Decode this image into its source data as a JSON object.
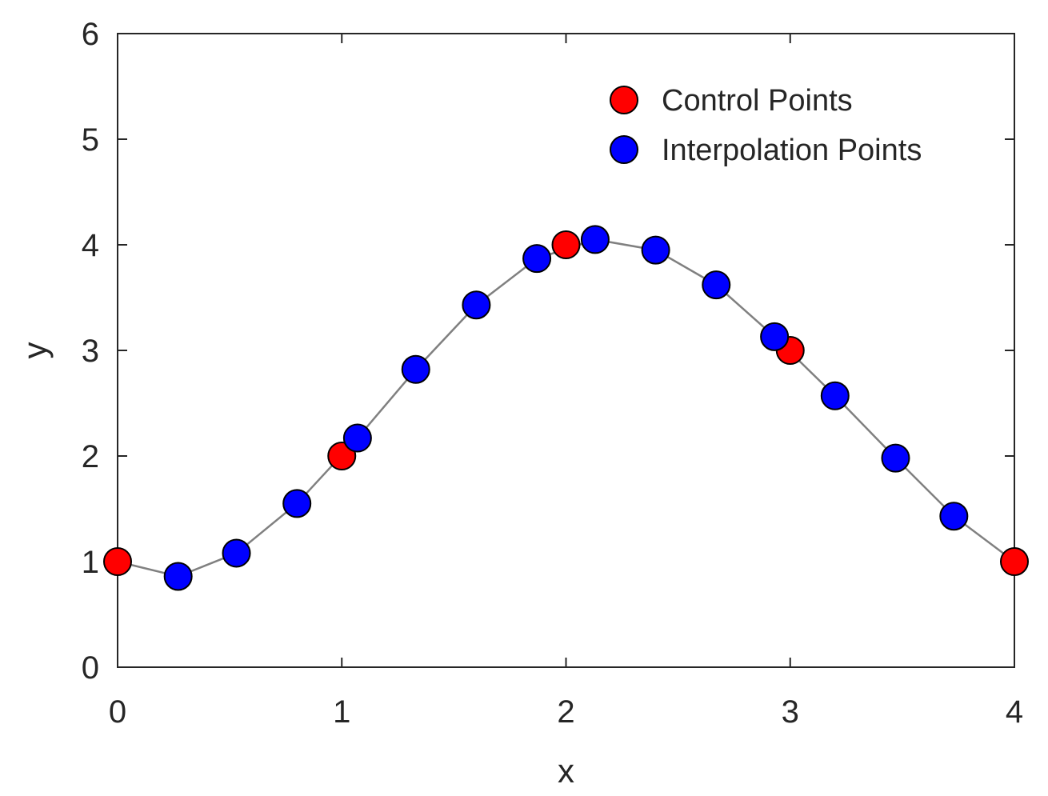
{
  "chart_data": {
    "type": "scatter",
    "xlabel": "x",
    "ylabel": "y",
    "xlim": [
      0,
      4
    ],
    "ylim": [
      0,
      6
    ],
    "xticks": [
      "0",
      "1",
      "2",
      "3",
      "4"
    ],
    "yticks": [
      "0",
      "1",
      "2",
      "3",
      "4",
      "5",
      "6"
    ],
    "grid": false,
    "legend_position": "top-right",
    "series": [
      {
        "name": "Control Points",
        "color": "#ff0000",
        "x": [
          0,
          1,
          2,
          3,
          4
        ],
        "y": [
          1,
          2,
          4,
          3,
          1
        ]
      },
      {
        "name": "Interpolation Points",
        "color": "#0000ff",
        "line_color": "#808080",
        "x": [
          0.27,
          0.53,
          0.8,
          1.07,
          1.33,
          1.6,
          1.87,
          2.13,
          2.4,
          2.67,
          2.93,
          3.2,
          3.47,
          3.73
        ],
        "y": [
          0.86,
          1.08,
          1.55,
          2.17,
          2.82,
          3.43,
          3.87,
          4.05,
          3.95,
          3.62,
          3.13,
          2.57,
          1.98,
          1.43
        ]
      }
    ],
    "curve": {
      "x": [
        0,
        0.27,
        0.53,
        0.8,
        1.07,
        1.33,
        1.6,
        1.87,
        2.13,
        2.4,
        2.67,
        2.93,
        3.2,
        3.47,
        3.73,
        4
      ],
      "y": [
        1,
        0.86,
        1.08,
        1.55,
        2.17,
        2.82,
        3.43,
        3.87,
        4.05,
        3.95,
        3.62,
        3.13,
        2.57,
        1.98,
        1.43,
        1
      ]
    }
  }
}
